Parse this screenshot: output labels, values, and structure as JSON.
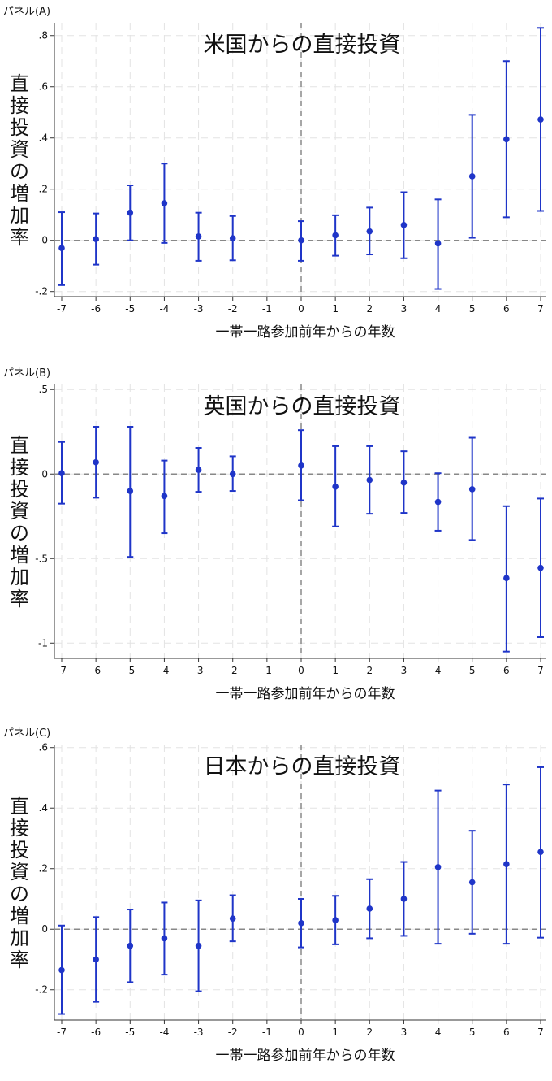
{
  "chart_data": [
    {
      "type": "scatter",
      "panel_label": "パネル(A)",
      "title": "米国からの直接投資",
      "xlabel": "一帯一路参加前年からの年数",
      "ylabel": "直接投資の増加率",
      "xlim": [
        -7,
        7
      ],
      "ylim": [
        -0.22,
        0.85
      ],
      "x_ticks": [
        -7,
        -6,
        -5,
        -4,
        -3,
        -2,
        -1,
        0,
        1,
        2,
        3,
        4,
        5,
        6,
        7
      ],
      "y_ticks": [
        -0.2,
        0,
        0.2,
        0.4,
        0.6,
        0.8
      ],
      "y_tick_labels": [
        "-.2",
        "0",
        ".2",
        ".4",
        ".6",
        ".8"
      ],
      "reference_lines": {
        "y": 0,
        "x": 0
      },
      "grid": true,
      "color": "#1f35c8",
      "points": [
        {
          "x": -7,
          "y": -0.03,
          "lo": -0.175,
          "hi": 0.11
        },
        {
          "x": -6,
          "y": 0.005,
          "lo": -0.095,
          "hi": 0.105
        },
        {
          "x": -5,
          "y": 0.108,
          "lo": 0.0,
          "hi": 0.215
        },
        {
          "x": -4,
          "y": 0.145,
          "lo": -0.01,
          "hi": 0.3
        },
        {
          "x": -3,
          "y": 0.015,
          "lo": -0.08,
          "hi": 0.108
        },
        {
          "x": -2,
          "y": 0.008,
          "lo": -0.078,
          "hi": 0.095
        },
        {
          "x": 0,
          "y": 0.0,
          "lo": -0.08,
          "hi": 0.075
        },
        {
          "x": 1,
          "y": 0.02,
          "lo": -0.06,
          "hi": 0.098
        },
        {
          "x": 2,
          "y": 0.035,
          "lo": -0.055,
          "hi": 0.128
        },
        {
          "x": 3,
          "y": 0.06,
          "lo": -0.07,
          "hi": 0.188
        },
        {
          "x": 4,
          "y": -0.012,
          "lo": -0.19,
          "hi": 0.16
        },
        {
          "x": 5,
          "y": 0.25,
          "lo": 0.01,
          "hi": 0.49
        },
        {
          "x": 6,
          "y": 0.395,
          "lo": 0.09,
          "hi": 0.7
        },
        {
          "x": 7,
          "y": 0.472,
          "lo": 0.115,
          "hi": 0.83
        }
      ]
    },
    {
      "type": "scatter",
      "panel_label": "パネル(B)",
      "title": "英国からの直接投資",
      "xlabel": "一帯一路参加前年からの年数",
      "ylabel": "直接投資の増加率",
      "xlim": [
        -7,
        7
      ],
      "ylim": [
        -1.09,
        0.53
      ],
      "x_ticks": [
        -7,
        -6,
        -5,
        -4,
        -3,
        -2,
        -1,
        0,
        1,
        2,
        3,
        4,
        5,
        6,
        7
      ],
      "y_ticks": [
        -1,
        -0.5,
        0,
        0.5
      ],
      "y_tick_labels": [
        "-1",
        "-.5",
        "0",
        ".5"
      ],
      "reference_lines": {
        "y": 0,
        "x": 0
      },
      "grid": true,
      "color": "#1f35c8",
      "points": [
        {
          "x": -7,
          "y": 0.005,
          "lo": -0.175,
          "hi": 0.19
        },
        {
          "x": -6,
          "y": 0.07,
          "lo": -0.14,
          "hi": 0.28
        },
        {
          "x": -5,
          "y": -0.1,
          "lo": -0.49,
          "hi": 0.28
        },
        {
          "x": -4,
          "y": -0.13,
          "lo": -0.35,
          "hi": 0.08
        },
        {
          "x": -3,
          "y": 0.025,
          "lo": -0.105,
          "hi": 0.155
        },
        {
          "x": -2,
          "y": 0.0,
          "lo": -0.1,
          "hi": 0.105
        },
        {
          "x": 0,
          "y": 0.05,
          "lo": -0.155,
          "hi": 0.26
        },
        {
          "x": 1,
          "y": -0.075,
          "lo": -0.31,
          "hi": 0.165
        },
        {
          "x": 2,
          "y": -0.035,
          "lo": -0.235,
          "hi": 0.165
        },
        {
          "x": 3,
          "y": -0.05,
          "lo": -0.23,
          "hi": 0.135
        },
        {
          "x": 4,
          "y": -0.165,
          "lo": -0.335,
          "hi": 0.005
        },
        {
          "x": 5,
          "y": -0.09,
          "lo": -0.39,
          "hi": 0.215
        },
        {
          "x": 6,
          "y": -0.615,
          "lo": -1.05,
          "hi": -0.19
        },
        {
          "x": 7,
          "y": -0.555,
          "lo": -0.965,
          "hi": -0.145
        }
      ]
    },
    {
      "type": "scatter",
      "panel_label": "パネル(C)",
      "title": "日本からの直接投資",
      "xlabel": "一帯一路参加前年からの年数",
      "ylabel": "直接投資の増加率",
      "xlim": [
        -7,
        7
      ],
      "ylim": [
        -0.3,
        0.61
      ],
      "x_ticks": [
        -7,
        -6,
        -5,
        -4,
        -3,
        -2,
        -1,
        0,
        1,
        2,
        3,
        4,
        5,
        6,
        7
      ],
      "y_ticks": [
        -0.2,
        0,
        0.2,
        0.4,
        0.6
      ],
      "y_tick_labels": [
        "-.2",
        "0",
        ".2",
        ".4",
        ".6"
      ],
      "reference_lines": {
        "y": 0,
        "x": 0
      },
      "grid": true,
      "color": "#1f35c8",
      "points": [
        {
          "x": -7,
          "y": -0.135,
          "lo": -0.28,
          "hi": 0.012
        },
        {
          "x": -6,
          "y": -0.1,
          "lo": -0.24,
          "hi": 0.04
        },
        {
          "x": -5,
          "y": -0.055,
          "lo": -0.175,
          "hi": 0.065
        },
        {
          "x": -4,
          "y": -0.03,
          "lo": -0.15,
          "hi": 0.088
        },
        {
          "x": -3,
          "y": -0.055,
          "lo": -0.205,
          "hi": 0.095
        },
        {
          "x": -2,
          "y": 0.035,
          "lo": -0.04,
          "hi": 0.112
        },
        {
          "x": 0,
          "y": 0.02,
          "lo": -0.06,
          "hi": 0.1
        },
        {
          "x": 1,
          "y": 0.03,
          "lo": -0.05,
          "hi": 0.11
        },
        {
          "x": 2,
          "y": 0.068,
          "lo": -0.03,
          "hi": 0.165
        },
        {
          "x": 3,
          "y": 0.1,
          "lo": -0.022,
          "hi": 0.222
        },
        {
          "x": 4,
          "y": 0.205,
          "lo": -0.048,
          "hi": 0.458
        },
        {
          "x": 5,
          "y": 0.155,
          "lo": -0.015,
          "hi": 0.325
        },
        {
          "x": 6,
          "y": 0.215,
          "lo": -0.048,
          "hi": 0.478
        },
        {
          "x": 7,
          "y": 0.255,
          "lo": -0.028,
          "hi": 0.535
        }
      ]
    }
  ]
}
